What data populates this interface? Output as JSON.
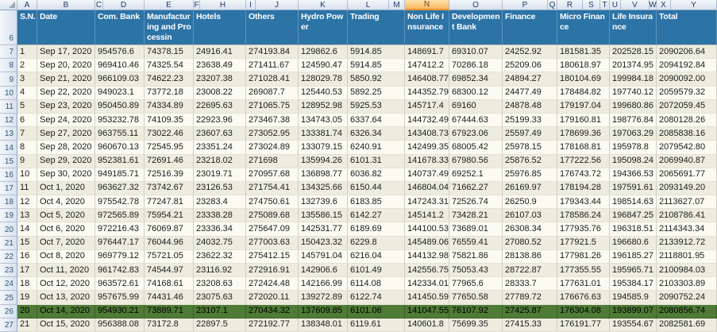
{
  "sheet": {
    "column_letters": [
      "A",
      "B",
      "C",
      "D",
      "E",
      "F",
      "H",
      "I",
      "J",
      "K",
      "L",
      "M",
      "N",
      "O",
      "P",
      "Q",
      "R",
      "S",
      "T",
      "U",
      "V",
      "W",
      "X",
      "Y"
    ],
    "selected_column_letter": "N",
    "header_row_number": "6",
    "highlighted_row_number": "26"
  },
  "colors": {
    "header_bg": "#2C73A6",
    "highlight_row_bg": "#4E7B35",
    "selected_column_bg": "#FAB860",
    "band_a": "#EDEDDF",
    "band_b": "#FBFBF1"
  },
  "table": {
    "columns": [
      {
        "key": "sn",
        "label": "S.N."
      },
      {
        "key": "date",
        "label": "Date"
      },
      {
        "key": "com_bank",
        "label": "Com. Bank"
      },
      {
        "key": "manufacturing",
        "label": "Manufacturing and Processin"
      },
      {
        "key": "hotels",
        "label": "Hotels"
      },
      {
        "key": "others",
        "label": "Others"
      },
      {
        "key": "hydro_power",
        "label": "Hydro Power"
      },
      {
        "key": "trading",
        "label": "Trading"
      },
      {
        "key": "non_life_insurance",
        "label": "Non Life Insurance"
      },
      {
        "key": "development_bank",
        "label": "Development Bank"
      },
      {
        "key": "finance",
        "label": "Finance"
      },
      {
        "key": "micro_finance",
        "label": "Micro Finance"
      },
      {
        "key": "life_insurance",
        "label": "Life Insurance"
      },
      {
        "key": "total",
        "label": "Total"
      }
    ],
    "rows": [
      {
        "row": "7",
        "sn": "1",
        "date": "Sep 17, 2020",
        "com_bank": "954576.6",
        "manufacturing": "74378.15",
        "hotels": "24916.41",
        "others": "274193.84",
        "hydro_power": "129862.6",
        "trading": "5914.85",
        "non_life_insurance": "148691.7",
        "development_bank": "69310.07",
        "finance": "24252.92",
        "micro_finance": "181581.35",
        "life_insurance": "202528.15",
        "total": "2090206.64",
        "highlighted": false
      },
      {
        "row": "8",
        "sn": "2",
        "date": "Sep 20, 2020",
        "com_bank": "969410.46",
        "manufacturing": "74325.54",
        "hotels": "23638.49",
        "others": "271411.67",
        "hydro_power": "124590.47",
        "trading": "5914.85",
        "non_life_insurance": "147412.2",
        "development_bank": "70286.18",
        "finance": "25209.06",
        "micro_finance": "180618.97",
        "life_insurance": "201374.95",
        "total": "2094192.84",
        "highlighted": false
      },
      {
        "row": "9",
        "sn": "3",
        "date": "Sep 21, 2020",
        "com_bank": "966109.03",
        "manufacturing": "74622.23",
        "hotels": "23207.38",
        "others": "271028.41",
        "hydro_power": "128029.78",
        "trading": "5850.92",
        "non_life_insurance": "146408.77",
        "development_bank": "69852.34",
        "finance": "24894.27",
        "micro_finance": "180104.69",
        "life_insurance": "199984.18",
        "total": "2090092.00",
        "highlighted": false
      },
      {
        "row": "10",
        "sn": "4",
        "date": "Sep 22, 2020",
        "com_bank": "949023.1",
        "manufacturing": "73772.18",
        "hotels": "23008.22",
        "others": "269087.7",
        "hydro_power": "125440.53",
        "trading": "5892.25",
        "non_life_insurance": "144352.79",
        "development_bank": "68300.12",
        "finance": "24477.49",
        "micro_finance": "178484.82",
        "life_insurance": "197740.12",
        "total": "2059579.32",
        "highlighted": false
      },
      {
        "row": "11",
        "sn": "5",
        "date": "Sep 23, 2020",
        "com_bank": "950450.89",
        "manufacturing": "74334.89",
        "hotels": "22695.63",
        "others": "271065.75",
        "hydro_power": "128952.98",
        "trading": "5925.53",
        "non_life_insurance": "145717.4",
        "development_bank": "69160",
        "finance": "24878.48",
        "micro_finance": "179197.04",
        "life_insurance": "199680.86",
        "total": "2072059.45",
        "highlighted": false
      },
      {
        "row": "12",
        "sn": "6",
        "date": "Sep 24, 2020",
        "com_bank": "953232.78",
        "manufacturing": "74109.35",
        "hotels": "22923.96",
        "others": "273467.38",
        "hydro_power": "134743.05",
        "trading": "6337.64",
        "non_life_insurance": "144732.49",
        "development_bank": "67444.63",
        "finance": "25199.33",
        "micro_finance": "179160.81",
        "life_insurance": "198776.84",
        "total": "2080128.26",
        "highlighted": false
      },
      {
        "row": "13",
        "sn": "7",
        "date": "Sep 27, 2020",
        "com_bank": "963755.11",
        "manufacturing": "73022.46",
        "hotels": "23607.63",
        "others": "273052.95",
        "hydro_power": "133381.74",
        "trading": "6326.34",
        "non_life_insurance": "143408.73",
        "development_bank": "67923.06",
        "finance": "25597.49",
        "micro_finance": "178699.36",
        "life_insurance": "197063.29",
        "total": "2085838.16",
        "highlighted": false
      },
      {
        "row": "14",
        "sn": "8",
        "date": "Sep 28, 2020",
        "com_bank": "960670.13",
        "manufacturing": "72545.95",
        "hotels": "23351.24",
        "others": "273024.89",
        "hydro_power": "133079.15",
        "trading": "6240.91",
        "non_life_insurance": "142499.35",
        "development_bank": "68005.42",
        "finance": "25978.15",
        "micro_finance": "178168.81",
        "life_insurance": "195978.8",
        "total": "2079542.80",
        "highlighted": false
      },
      {
        "row": "15",
        "sn": "9",
        "date": "Sep 29, 2020",
        "com_bank": "952381.61",
        "manufacturing": "72691.46",
        "hotels": "23218.02",
        "others": "271698",
        "hydro_power": "135994.26",
        "trading": "6101.31",
        "non_life_insurance": "141678.33",
        "development_bank": "67980.56",
        "finance": "25876.52",
        "micro_finance": "177222.56",
        "life_insurance": "195098.24",
        "total": "2069940.87",
        "highlighted": false
      },
      {
        "row": "16",
        "sn": "10",
        "date": "Sep 30, 2020",
        "com_bank": "949185.71",
        "manufacturing": "72516.39",
        "hotels": "23019.71",
        "others": "270957.68",
        "hydro_power": "136898.77",
        "trading": "6036.82",
        "non_life_insurance": "140737.49",
        "development_bank": "69252.1",
        "finance": "25976.85",
        "micro_finance": "176743.72",
        "life_insurance": "194366.53",
        "total": "2065691.77",
        "highlighted": false
      },
      {
        "row": "17",
        "sn": "11",
        "date": "Oct 1, 2020",
        "com_bank": "963627.32",
        "manufacturing": "73742.67",
        "hotels": "23126.53",
        "others": "271754.41",
        "hydro_power": "134325.66",
        "trading": "6150.44",
        "non_life_insurance": "146804.04",
        "development_bank": "71662.27",
        "finance": "26169.97",
        "micro_finance": "178194.28",
        "life_insurance": "197591.61",
        "total": "2093149.20",
        "highlighted": false
      },
      {
        "row": "18",
        "sn": "12",
        "date": "Oct 4, 2020",
        "com_bank": "975542.78",
        "manufacturing": "77247.81",
        "hotels": "23283.4",
        "others": "274750.61",
        "hydro_power": "132739.6",
        "trading": "6183.85",
        "non_life_insurance": "147243.31",
        "development_bank": "72526.74",
        "finance": "26250.9",
        "micro_finance": "179343.44",
        "life_insurance": "198514.63",
        "total": "2113627.07",
        "highlighted": false
      },
      {
        "row": "19",
        "sn": "13",
        "date": "Oct 5, 2020",
        "com_bank": "972565.89",
        "manufacturing": "75954.21",
        "hotels": "23338.28",
        "others": "275089.68",
        "hydro_power": "135586.15",
        "trading": "6142.27",
        "non_life_insurance": "145141.2",
        "development_bank": "73428.21",
        "finance": "26107.03",
        "micro_finance": "178586.24",
        "life_insurance": "196847.25",
        "total": "2108786.41",
        "highlighted": false
      },
      {
        "row": "20",
        "sn": "14",
        "date": "Oct 6, 2020",
        "com_bank": "972216.43",
        "manufacturing": "76069.87",
        "hotels": "23336.34",
        "others": "275647.09",
        "hydro_power": "142531.77",
        "trading": "6189.69",
        "non_life_insurance": "144100.53",
        "development_bank": "73689.01",
        "finance": "26308.34",
        "micro_finance": "177935.76",
        "life_insurance": "196318.51",
        "total": "2114343.34",
        "highlighted": false
      },
      {
        "row": "21",
        "sn": "15",
        "date": "Oct 7, 2020",
        "com_bank": "976447.17",
        "manufacturing": "76044.96",
        "hotels": "24032.75",
        "others": "277003.63",
        "hydro_power": "150423.32",
        "trading": "6229.8",
        "non_life_insurance": "145489.06",
        "development_bank": "76559.41",
        "finance": "27080.52",
        "micro_finance": "177921.5",
        "life_insurance": "196680.6",
        "total": "2133912.72",
        "highlighted": false
      },
      {
        "row": "22",
        "sn": "16",
        "date": "Oct 8, 2020",
        "com_bank": "969779.12",
        "manufacturing": "75721.05",
        "hotels": "23622.32",
        "others": "275412.15",
        "hydro_power": "145791.04",
        "trading": "6216.04",
        "non_life_insurance": "144132.98",
        "development_bank": "75821.86",
        "finance": "28138.86",
        "micro_finance": "177981.26",
        "life_insurance": "196185.27",
        "total": "2118801.95",
        "highlighted": false
      },
      {
        "row": "23",
        "sn": "17",
        "date": "Oct 11, 2020",
        "com_bank": "961742.83",
        "manufacturing": "74544.97",
        "hotels": "23116.92",
        "others": "272916.91",
        "hydro_power": "142906.6",
        "trading": "6101.49",
        "non_life_insurance": "142556.75",
        "development_bank": "75053.43",
        "finance": "28722.87",
        "micro_finance": "177355.55",
        "life_insurance": "195965.71",
        "total": "2100984.03",
        "highlighted": false
      },
      {
        "row": "24",
        "sn": "18",
        "date": "Oct 12, 2020",
        "com_bank": "963572.61",
        "manufacturing": "74168.61",
        "hotels": "23208.63",
        "others": "272424.48",
        "hydro_power": "142166.99",
        "trading": "6114.08",
        "non_life_insurance": "142334.01",
        "development_bank": "77965.6",
        "finance": "28333.7",
        "micro_finance": "177631.01",
        "life_insurance": "195384.17",
        "total": "2103303.89",
        "highlighted": false
      },
      {
        "row": "25",
        "sn": "19",
        "date": "Oct 13, 2020",
        "com_bank": "957675.99",
        "manufacturing": "74431.46",
        "hotels": "23075.63",
        "others": "272020.11",
        "hydro_power": "139272.89",
        "trading": "6122.74",
        "non_life_insurance": "141450.59",
        "development_bank": "77650.58",
        "finance": "27789.72",
        "micro_finance": "176676.63",
        "life_insurance": "194585.9",
        "total": "2090752.24",
        "highlighted": false
      },
      {
        "row": "26",
        "sn": "20",
        "date": "Oct 14, 2020",
        "com_bank": "954930.21",
        "manufacturing": "73889.71",
        "hotels": "23107.1",
        "others": "270434.32",
        "hydro_power": "137609.85",
        "trading": "6101.06",
        "non_life_insurance": "141047.55",
        "development_bank": "76107.92",
        "finance": "27425.87",
        "micro_finance": "176304.08",
        "life_insurance": "193899.07",
        "total": "2080856.74",
        "highlighted": true
      },
      {
        "row": "27",
        "sn": "21",
        "date": "Oct 15, 2020",
        "com_bank": "956388.08",
        "manufacturing": "73172.8",
        "hotels": "22897.5",
        "others": "272192.77",
        "hydro_power": "138348.01",
        "trading": "6119.61",
        "non_life_insurance": "140601.8",
        "development_bank": "75699.35",
        "finance": "27415.33",
        "micro_finance": "176191.77",
        "life_insurance": "193554.67",
        "total": "2082581.69",
        "highlighted": false
      }
    ]
  }
}
